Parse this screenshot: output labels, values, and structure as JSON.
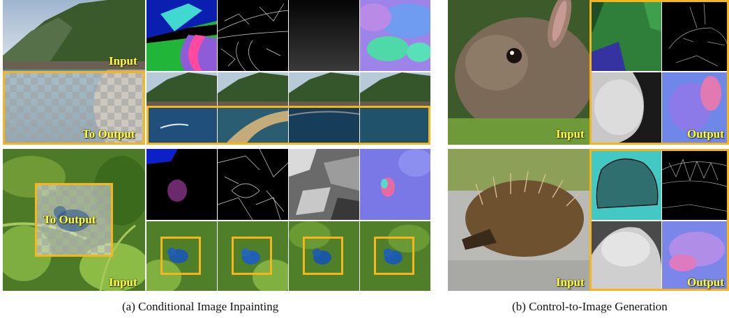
{
  "figure": {
    "panel_a": {
      "caption": "(a) Conditional Image Inpainting",
      "row1": {
        "input_label": "Input",
        "output_label": "To Output"
      },
      "row2": {
        "input_label": "Input",
        "output_label": "To Output"
      }
    },
    "panel_b": {
      "caption": "(b) Control-to-Image Generation",
      "row1": {
        "input_label": "Input",
        "output_label": "Output"
      },
      "row2": {
        "input_label": "Input",
        "output_label": "Output"
      }
    }
  },
  "colors": {
    "highlight_frame": "#f4b61c",
    "label_text": "#ffff33"
  }
}
